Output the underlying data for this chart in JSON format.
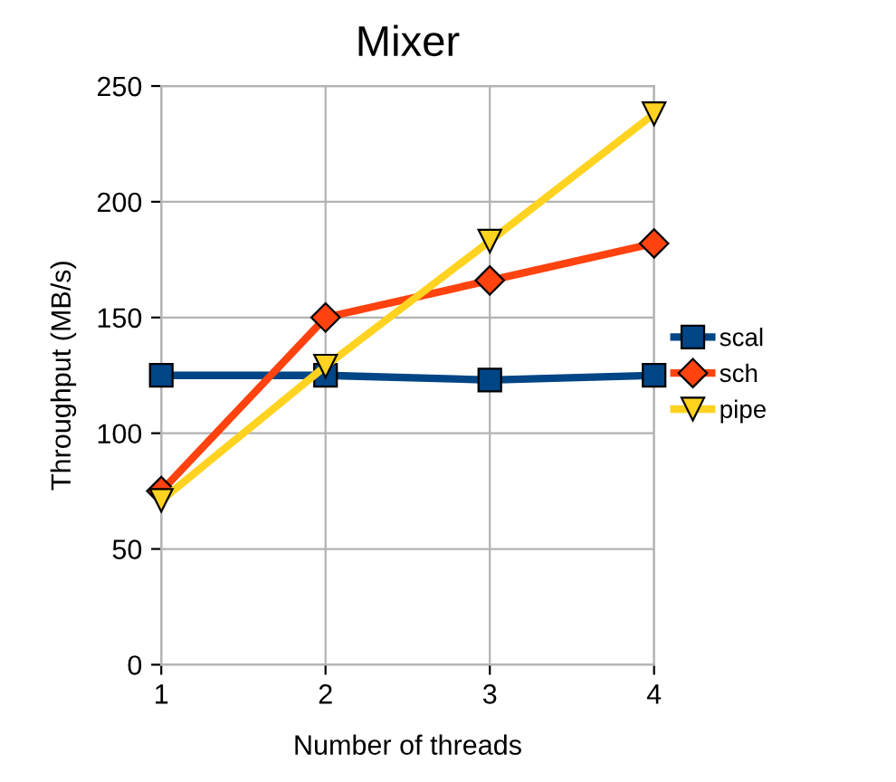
{
  "chart_data": {
    "type": "line",
    "title": "Mixer",
    "xlabel": "Number of threads",
    "ylabel": "Throughput (MB/s)",
    "x": [
      1,
      2,
      3,
      4
    ],
    "series": [
      {
        "name": "scal",
        "color": "#004586",
        "marker": "square",
        "values": [
          125,
          125,
          123,
          125
        ]
      },
      {
        "name": "sch",
        "color": "#ff420e",
        "marker": "diamond",
        "values": [
          75,
          150,
          166,
          182
        ]
      },
      {
        "name": "pipe",
        "color": "#ffd320",
        "marker": "triangle",
        "values": [
          71,
          129,
          183,
          238
        ]
      }
    ],
    "xlim": [
      1,
      4
    ],
    "xticks": [
      1,
      2,
      3,
      4
    ],
    "ylim": [
      0,
      250
    ],
    "yticks": [
      0,
      50,
      100,
      150,
      200,
      250
    ],
    "grid": true,
    "legend": "right",
    "line_style": "solid"
  }
}
